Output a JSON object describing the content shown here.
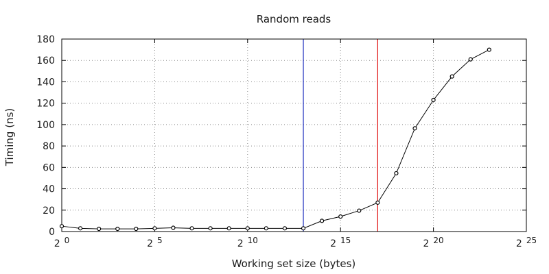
{
  "chart_data": {
    "type": "line",
    "title": "Random reads",
    "xlabel": "Working set size (bytes)",
    "ylabel": "Timing (ns)",
    "x_scale": "log2",
    "x_exponents": [
      0,
      1,
      2,
      3,
      4,
      5,
      6,
      7,
      8,
      9,
      10,
      11,
      12,
      13,
      14,
      15,
      16,
      17,
      18,
      19,
      20,
      21,
      22,
      23
    ],
    "values": [
      5,
      3,
      2.5,
      2.5,
      2.5,
      3,
      3.5,
      3,
      3,
      3,
      3,
      3,
      3,
      3,
      10,
      14,
      19.5,
      27,
      54.5,
      96.5,
      123,
      145,
      161,
      170
    ],
    "xlim_exponent": [
      0,
      25
    ],
    "ylim": [
      0,
      180
    ],
    "yticks": [
      0,
      20,
      40,
      60,
      80,
      100,
      120,
      140,
      160,
      180
    ],
    "xticks": [
      {
        "base": "2",
        "exp": "0",
        "value": 0
      },
      {
        "base": "2",
        "exp": "5",
        "value": 5
      },
      {
        "base": "2",
        "exp": "10",
        "value": 10
      },
      {
        "base": "2",
        "exp": "15",
        "value": 15
      },
      {
        "base": "2",
        "exp": "20",
        "value": 20
      },
      {
        "base": "2",
        "exp": "25",
        "value": 25
      }
    ],
    "grid": true,
    "vertical_markers": [
      {
        "x_exponent": 13,
        "color": "#1f2fbf"
      },
      {
        "x_exponent": 17,
        "color": "#e01010"
      }
    ],
    "series_color": "#000000"
  }
}
